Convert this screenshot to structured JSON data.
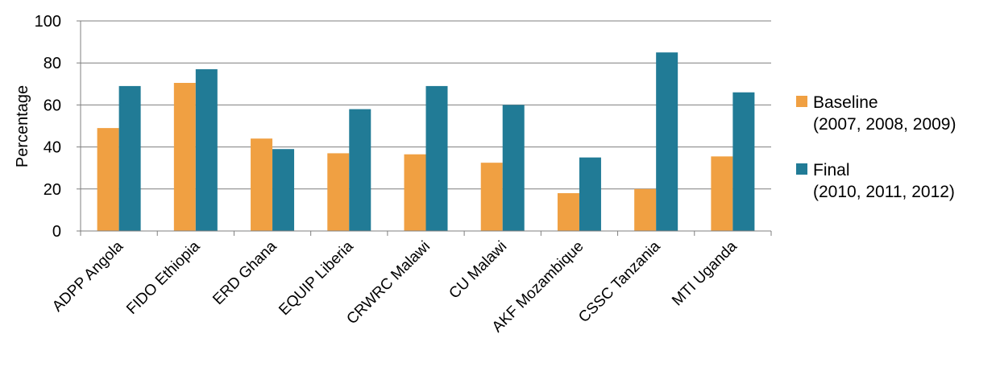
{
  "chart_data": {
    "type": "bar",
    "title": "",
    "xlabel": "",
    "ylabel": "Percentage",
    "ylim": [
      0,
      100
    ],
    "yticks": [
      "0",
      "20",
      "40",
      "60",
      "80",
      "100"
    ],
    "grid": true,
    "legend_position": "right",
    "categories": [
      "ADPP Angola",
      "FIDO Ethiopia",
      "ERD Ghana",
      "EQUIP Liberia",
      "CRWRC Malawi",
      "CU Malawi",
      "AKF Mozambique",
      "CSSC Tanzania",
      "MTI Uganda"
    ],
    "series": [
      {
        "name": "Baseline",
        "name_line2": "(2007, 2008, 2009)",
        "color": "#F0A042",
        "values": [
          49,
          70.5,
          44,
          37,
          36.5,
          32.5,
          18,
          20,
          35.5
        ]
      },
      {
        "name": "Final",
        "name_line2": "(2010, 2011, 2012)",
        "color": "#217B96",
        "values": [
          69,
          77,
          39,
          58,
          69,
          60,
          35,
          85,
          66
        ]
      }
    ]
  }
}
